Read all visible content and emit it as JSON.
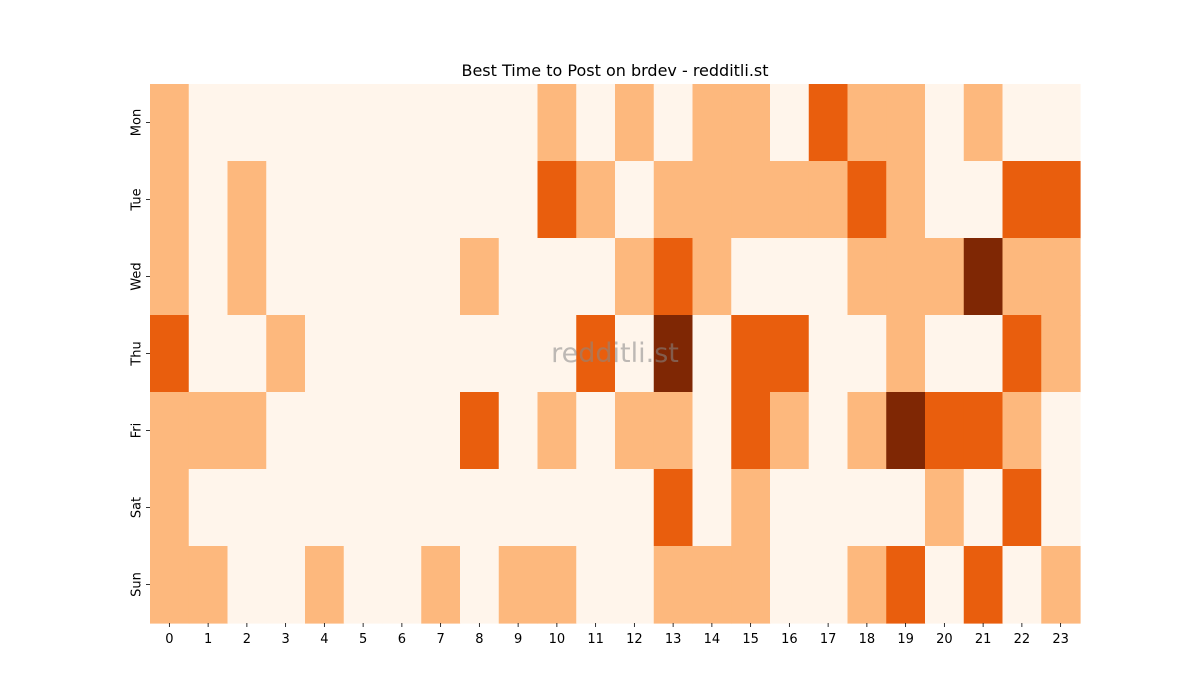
{
  "chart_data": {
    "type": "heatmap",
    "title": "Best Time to Post on brdev - redditli.st",
    "watermark": "redditli.st",
    "x_categories": [
      "0",
      "1",
      "2",
      "3",
      "4",
      "5",
      "6",
      "7",
      "8",
      "9",
      "10",
      "11",
      "12",
      "13",
      "14",
      "15",
      "16",
      "17",
      "18",
      "19",
      "20",
      "21",
      "22",
      "23"
    ],
    "y_categories": [
      "Mon",
      "Tue",
      "Wed",
      "Thu",
      "Fri",
      "Sat",
      "Sun"
    ],
    "levels": 4,
    "colors": [
      "#fff5eb",
      "#fdb87d",
      "#e95e0d",
      "#7f2704"
    ],
    "values": [
      [
        1,
        0,
        0,
        0,
        0,
        0,
        0,
        0,
        0,
        0,
        1,
        0,
        1,
        0,
        1,
        1,
        0,
        2,
        1,
        1,
        0,
        1,
        0,
        0
      ],
      [
        1,
        0,
        1,
        0,
        0,
        0,
        0,
        0,
        0,
        0,
        2,
        1,
        0,
        1,
        1,
        1,
        1,
        1,
        2,
        1,
        0,
        0,
        2,
        2
      ],
      [
        1,
        0,
        1,
        0,
        0,
        0,
        0,
        0,
        1,
        0,
        0,
        0,
        1,
        2,
        1,
        0,
        0,
        0,
        1,
        1,
        1,
        3,
        1,
        1
      ],
      [
        2,
        0,
        0,
        1,
        0,
        0,
        0,
        0,
        0,
        0,
        0,
        2,
        0,
        3,
        0,
        2,
        2,
        0,
        0,
        1,
        0,
        0,
        2,
        1
      ],
      [
        1,
        1,
        1,
        0,
        0,
        0,
        0,
        0,
        2,
        0,
        1,
        0,
        1,
        1,
        0,
        2,
        1,
        0,
        1,
        3,
        2,
        2,
        1,
        0
      ],
      [
        1,
        0,
        0,
        0,
        0,
        0,
        0,
        0,
        0,
        0,
        0,
        0,
        0,
        2,
        0,
        1,
        0,
        0,
        0,
        0,
        1,
        0,
        2,
        0
      ],
      [
        1,
        1,
        0,
        0,
        1,
        0,
        0,
        1,
        0,
        1,
        1,
        0,
        0,
        1,
        1,
        1,
        0,
        0,
        1,
        2,
        0,
        2,
        0,
        1
      ]
    ],
    "colorbar": false,
    "grid": false
  }
}
